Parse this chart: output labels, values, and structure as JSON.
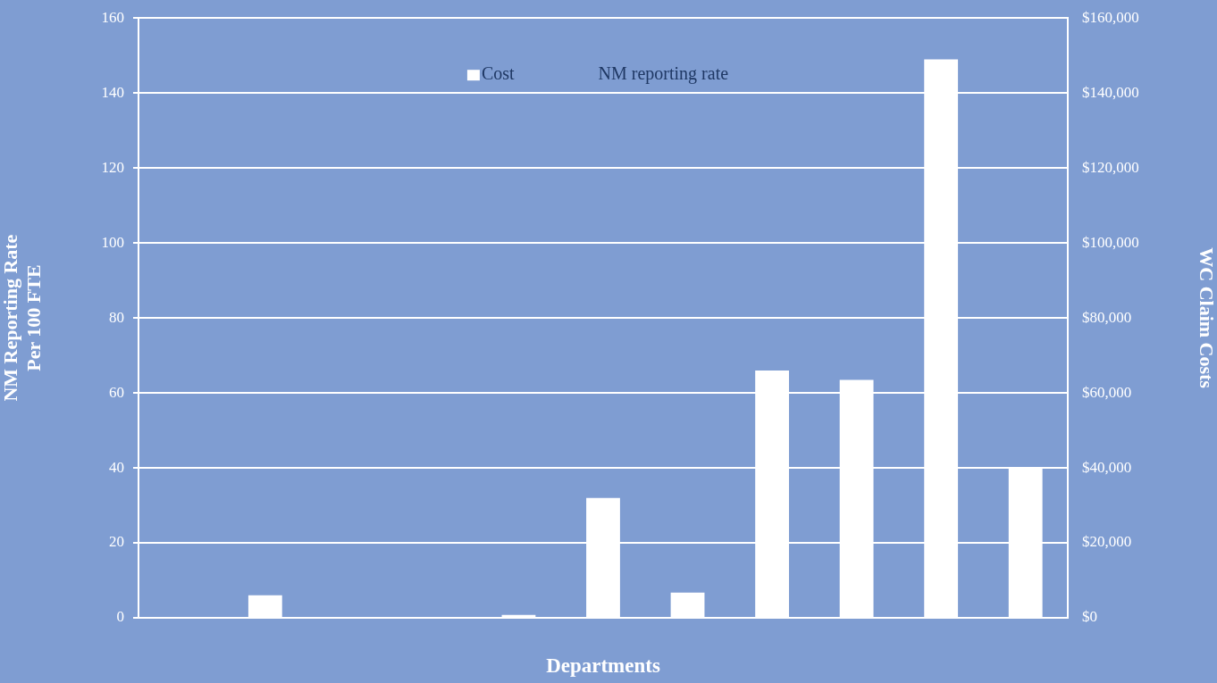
{
  "chart_data": {
    "type": "bar",
    "xlabel": "Departments",
    "ylabel": "NM Reporting Rate\nPer 100 FTE",
    "y2label": "WC Claim Costs",
    "categories": [
      null,
      null,
      null,
      null,
      null,
      null,
      null,
      null,
      null,
      null,
      null
    ],
    "series": [
      {
        "name": "Cost",
        "color": "#ffffff",
        "axis": "y2",
        "values": [
          0,
          6000,
          0,
          0,
          800,
          32000,
          6700,
          66000,
          63500,
          149000,
          40000
        ]
      },
      {
        "name": "NM reporting rate",
        "type": "line",
        "values": [
          null,
          null,
          null,
          null,
          null,
          null,
          null,
          null,
          null,
          null,
          null
        ]
      }
    ],
    "ylim": [
      0,
      160
    ],
    "yticks": [
      0,
      20,
      40,
      60,
      80,
      100,
      120,
      140,
      160
    ],
    "y2lim": [
      0,
      160000
    ],
    "y2ticks": [
      {
        "value": 0,
        "label": "$0"
      },
      {
        "value": 20000,
        "label": "$20,000"
      },
      {
        "value": 40000,
        "label": "$40,000"
      },
      {
        "value": 60000,
        "label": "$60,000"
      },
      {
        "value": 80000,
        "label": "$80,000"
      },
      {
        "value": 100000,
        "label": "$100,000"
      },
      {
        "value": 120000,
        "label": "$120,000"
      },
      {
        "value": 140000,
        "label": "$140,000"
      },
      {
        "value": 160000,
        "label": "$160,000"
      }
    ],
    "grid": "y",
    "legend": "top"
  }
}
